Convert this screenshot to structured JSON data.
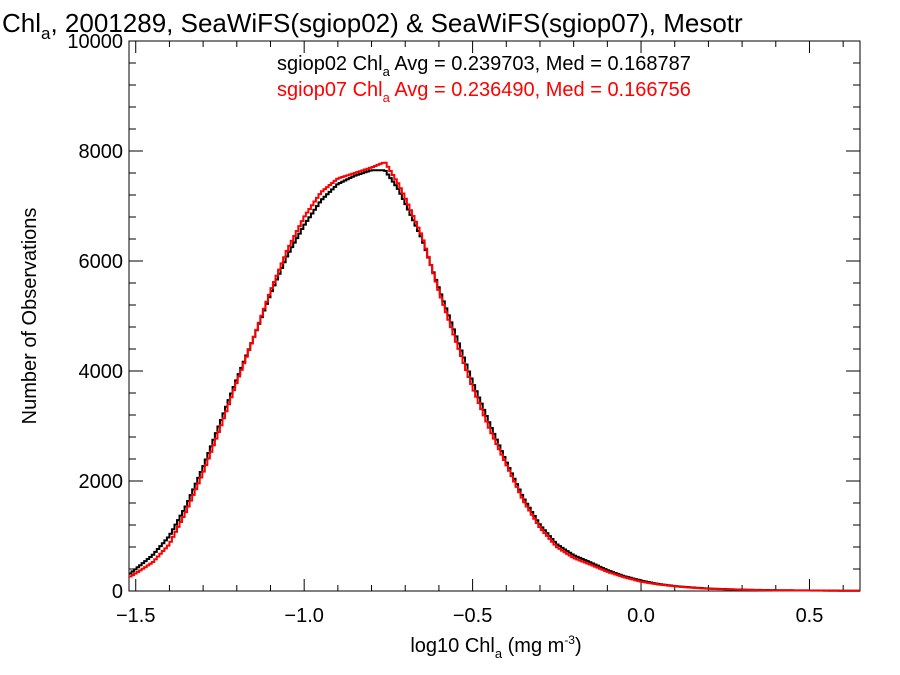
{
  "chart_data": {
    "type": "line",
    "title": {
      "main": "Chl",
      "sub": "a",
      "rest": ", 2001289, SeaWiFS(sgiop02) & SeaWiFS(sgiop07), Mesotr"
    },
    "xlabel": {
      "pre": "log10 Chl",
      "sub": "a",
      "mid": " (mg m",
      "sup": "-3",
      "post": ")"
    },
    "ylabel": "Number of Observations",
    "xlim": [
      -1.52,
      0.65
    ],
    "ylim": [
      0,
      10000
    ],
    "x_ticks": [
      {
        "value": -1.5,
        "label": "−1.5"
      },
      {
        "value": -1.0,
        "label": "−1.0"
      },
      {
        "value": -0.5,
        "label": "−0.5"
      },
      {
        "value": 0.0,
        "label": "0.0"
      },
      {
        "value": 0.5,
        "label": "0.5"
      }
    ],
    "x_minor_step": 0.1,
    "y_ticks": [
      {
        "value": 0,
        "label": "0"
      },
      {
        "value": 2000,
        "label": "2000"
      },
      {
        "value": 4000,
        "label": "4000"
      },
      {
        "value": 6000,
        "label": "6000"
      },
      {
        "value": 8000,
        "label": "8000"
      },
      {
        "value": 10000,
        "label": "10000"
      }
    ],
    "y_minor_step": 400,
    "grid": false,
    "legend_position": "top-center",
    "series": [
      {
        "name": "sgiop02",
        "color": "#000000",
        "legend": {
          "pre": "sgiop02 Chl",
          "sub": "a",
          "post": " Avg = 0.239703, Med = 0.168787"
        },
        "x": [
          -1.52,
          -1.5,
          -1.45,
          -1.4,
          -1.35,
          -1.3,
          -1.25,
          -1.2,
          -1.15,
          -1.1,
          -1.05,
          -1.0,
          -0.95,
          -0.9,
          -0.85,
          -0.8,
          -0.76,
          -0.72,
          -0.7,
          -0.65,
          -0.6,
          -0.55,
          -0.5,
          -0.45,
          -0.4,
          -0.35,
          -0.3,
          -0.25,
          -0.2,
          -0.15,
          -0.1,
          -0.05,
          0.0,
          0.05,
          0.1,
          0.15,
          0.2,
          0.3,
          0.4,
          0.5,
          0.6,
          0.65
        ],
        "y": [
          300,
          400,
          650,
          1000,
          1550,
          2250,
          3050,
          3850,
          4600,
          5400,
          6100,
          6650,
          7100,
          7400,
          7550,
          7650,
          7650,
          7300,
          7050,
          6400,
          5500,
          4650,
          3800,
          3050,
          2350,
          1700,
          1200,
          850,
          650,
          520,
          380,
          270,
          190,
          130,
          90,
          65,
          45,
          25,
          15,
          10,
          5,
          5
        ]
      },
      {
        "name": "sgiop07",
        "color": "#ff0000",
        "legend": {
          "pre": "sgiop07 Chl",
          "sub": "a",
          "post": " Avg = 0.236490, Med = 0.166756"
        },
        "x": [
          -1.52,
          -1.5,
          -1.45,
          -1.4,
          -1.35,
          -1.3,
          -1.25,
          -1.2,
          -1.15,
          -1.1,
          -1.05,
          -1.0,
          -0.95,
          -0.9,
          -0.85,
          -0.8,
          -0.76,
          -0.74,
          -0.72,
          -0.7,
          -0.65,
          -0.6,
          -0.55,
          -0.5,
          -0.45,
          -0.4,
          -0.35,
          -0.3,
          -0.25,
          -0.2,
          -0.15,
          -0.1,
          -0.05,
          0.0,
          0.05,
          0.1,
          0.15,
          0.2,
          0.3,
          0.4,
          0.5,
          0.6,
          0.65
        ],
        "y": [
          250,
          320,
          520,
          850,
          1450,
          2150,
          2950,
          3800,
          4600,
          5450,
          6200,
          6800,
          7250,
          7500,
          7600,
          7700,
          7800,
          7600,
          7400,
          7150,
          6450,
          5450,
          4550,
          3700,
          2950,
          2300,
          1650,
          1150,
          800,
          600,
          480,
          350,
          250,
          170,
          120,
          85,
          60,
          40,
          22,
          12,
          8,
          4,
          4
        ]
      }
    ]
  }
}
